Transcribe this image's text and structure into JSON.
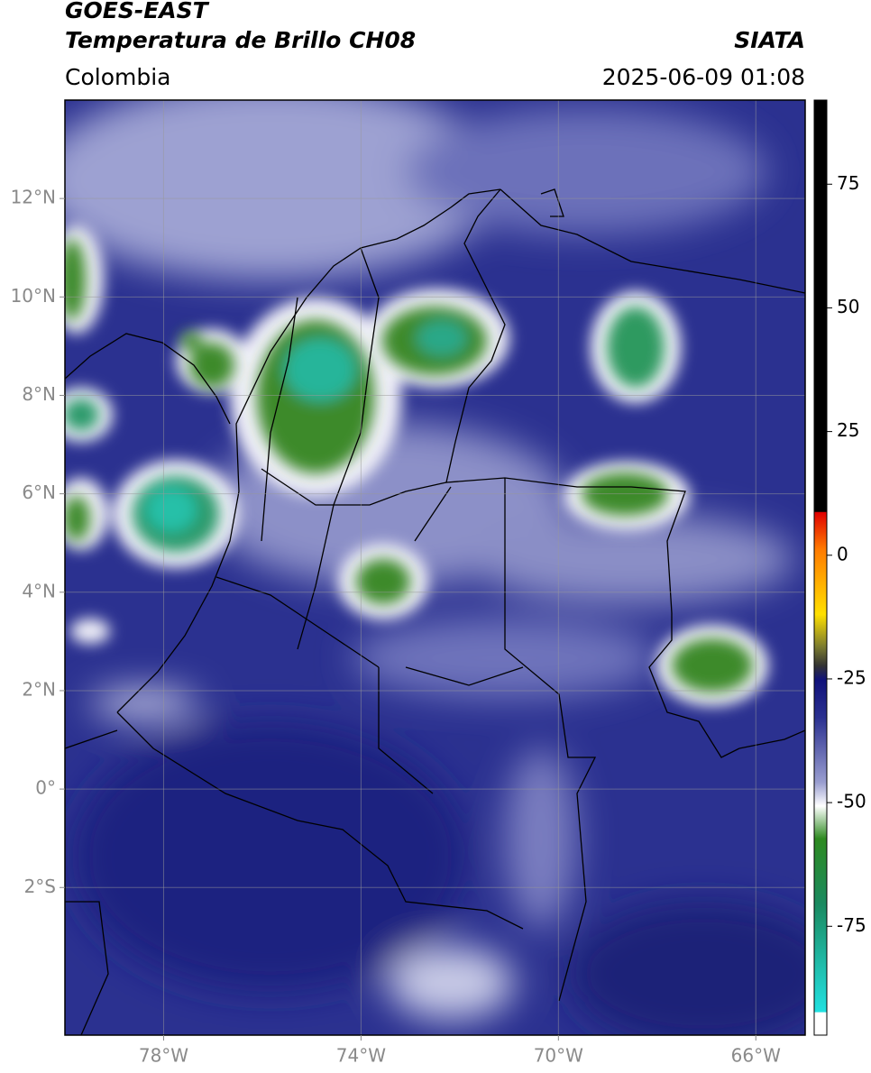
{
  "header": {
    "satellite": "GOES-EAST",
    "product": "Temperatura de Brillo CH08",
    "agency": "SIATA",
    "region": "Colombia",
    "datetime": "2025-06-09 01:08"
  },
  "map": {
    "xlim": [
      -80,
      -65
    ],
    "ylim": [
      -5,
      14
    ],
    "xticks": [
      {
        "value": -78,
        "label": "78°W"
      },
      {
        "value": -74,
        "label": "74°W"
      },
      {
        "value": -70,
        "label": "70°W"
      },
      {
        "value": -66,
        "label": "66°W"
      }
    ],
    "yticks": [
      {
        "value": 12,
        "label": "12°N"
      },
      {
        "value": 10,
        "label": "10°N"
      },
      {
        "value": 8,
        "label": "8°N"
      },
      {
        "value": 6,
        "label": "6°N"
      },
      {
        "value": 4,
        "label": "4°N"
      },
      {
        "value": 2,
        "label": "2°N"
      },
      {
        "value": 0,
        "label": "0°"
      },
      {
        "value": -2,
        "label": "2°S"
      }
    ],
    "grid": true
  },
  "colorbar": {
    "lim": [
      -97,
      92
    ],
    "ticks": [
      75,
      50,
      25,
      0,
      -25,
      -50,
      -75
    ]
  }
}
